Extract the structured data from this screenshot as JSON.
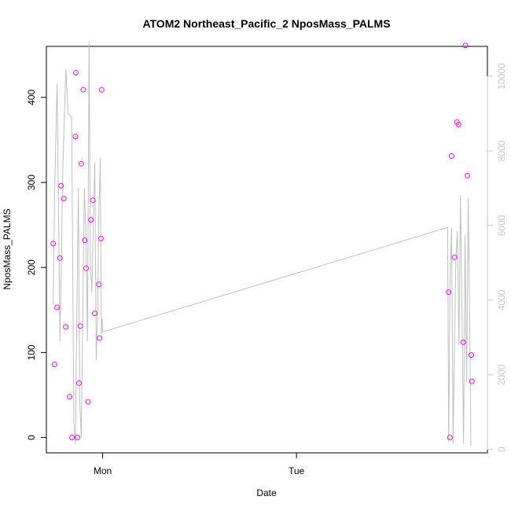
{
  "chart_data": {
    "type": "scatter",
    "title": "ATOM2 Northeast_Pacific_2 NposMass_PALMS",
    "xlabel": "Date",
    "ylabel": "NposMass_PALMS",
    "x_ticks": [
      "Mon",
      "Tue"
    ],
    "left_axis": {
      "ylim": [
        -18,
        460
      ],
      "ticks": [
        0,
        100,
        200,
        300,
        400
      ]
    },
    "right_axis": {
      "ylim": [
        -90,
        10800
      ],
      "ticks": [
        0,
        2000,
        4000,
        6000,
        8000,
        10000
      ],
      "color": "#c8c8c8"
    },
    "xlim": [
      -0.29,
      1.985
    ],
    "grid": false,
    "colors": {
      "points": "#ff00ff",
      "line": "#c0c0c0",
      "axis": "#000000",
      "right_axis": "#c8c8c8"
    },
    "points": {
      "name": "NposMass_PALMS",
      "x": [
        -0.255,
        -0.248,
        -0.235,
        -0.22,
        -0.214,
        -0.2,
        -0.19,
        -0.17,
        -0.158,
        -0.14,
        -0.138,
        -0.13,
        -0.122,
        -0.115,
        -0.11,
        -0.1,
        -0.092,
        -0.085,
        -0.075,
        -0.06,
        -0.05,
        -0.04,
        -0.02,
        -0.015,
        -0.008,
        -0.005,
        1.785,
        1.792,
        1.8,
        1.815,
        1.828,
        1.836,
        1.86,
        1.872,
        1.882,
        1.902,
        1.905
      ],
      "y": [
        228,
        86,
        153,
        211,
        296,
        281,
        130,
        48,
        0,
        354,
        429,
        0,
        64,
        131,
        322,
        409,
        232,
        199,
        42,
        256,
        279,
        146,
        180,
        117,
        234,
        409,
        171,
        0,
        331,
        212,
        371,
        368,
        112,
        461,
        308,
        97,
        66
      ]
    },
    "line": {
      "name": "secondary",
      "x": [
        -0.255,
        -0.248,
        -0.235,
        -0.22,
        -0.205,
        -0.19,
        -0.178,
        -0.16,
        -0.148,
        -0.14,
        -0.133,
        -0.125,
        -0.118,
        -0.11,
        -0.102,
        -0.094,
        -0.086,
        -0.078,
        -0.07,
        -0.063,
        -0.055,
        -0.047,
        -0.04,
        -0.033,
        -0.026,
        -0.02,
        -0.012,
        -0.006,
        -0.002,
        0.0,
        1.78,
        1.785,
        1.792,
        1.8,
        1.808,
        1.815,
        1.822,
        1.83,
        1.838,
        1.846,
        1.854,
        1.862,
        1.87,
        1.878,
        1.886,
        1.892,
        1.9
      ],
      "y": [
        3900,
        6800,
        9800,
        2900,
        7600,
        10200,
        9000,
        8900,
        700,
        150,
        3500,
        7000,
        1300,
        300,
        3800,
        7000,
        5800,
        2900,
        10900,
        5100,
        4200,
        6300,
        7700,
        2400,
        3600,
        6200,
        7800,
        3100,
        3500,
        3150,
        5950,
        200,
        4500,
        5950,
        150,
        2800,
        5000,
        5850,
        2800,
        6800,
        3600,
        150,
        5750,
        1800,
        6750,
        4100,
        100
      ]
    }
  }
}
